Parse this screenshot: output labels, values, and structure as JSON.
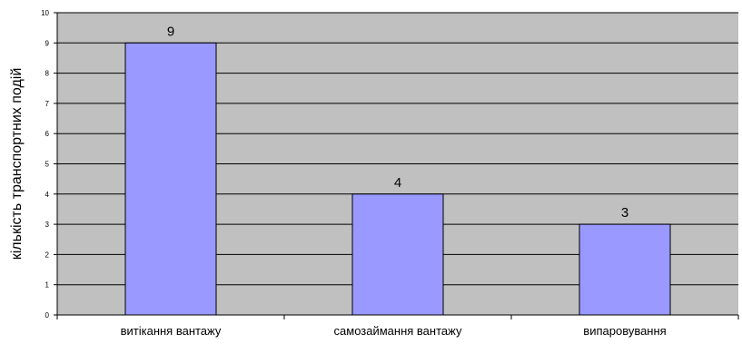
{
  "chart_data": {
    "type": "bar",
    "categories": [
      "витікання вантажу",
      "самозаймання вантажу",
      "випаровування"
    ],
    "values": [
      9,
      4,
      3
    ],
    "data_labels": [
      "9",
      "4",
      "3"
    ],
    "ylabel": "кількість транспортних подій",
    "ylim": [
      0,
      10
    ],
    "yticks": [
      "0",
      "1",
      "2",
      "3",
      "4",
      "5",
      "6",
      "7",
      "8",
      "9",
      "10"
    ],
    "grid": true,
    "legend": "none",
    "colors": {
      "plot_background": "#c0c0c0",
      "bar_fill": "#9999ff",
      "bar_stroke": "#000000",
      "gridline": "#000000"
    }
  }
}
